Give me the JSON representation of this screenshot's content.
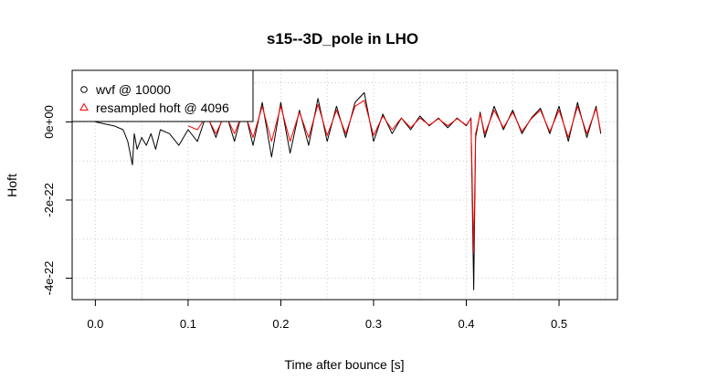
{
  "chart_data": {
    "type": "line",
    "title": "s15--3D_pole in LHO",
    "xlabel": "Time after bounce [s]",
    "ylabel": "Hoft",
    "xlim": [
      -0.025,
      0.563
    ],
    "ylim": [
      -4.55e-22,
      1.32e-22
    ],
    "x_ticks": [
      0.0,
      0.1,
      0.2,
      0.3,
      0.4,
      0.5
    ],
    "x_tick_labels": [
      "0.0",
      "0.1",
      "0.2",
      "0.3",
      "0.4",
      "0.5"
    ],
    "y_ticks": [
      -4e-22,
      -2e-22,
      0
    ],
    "y_tick_labels": [
      "-4e-22",
      "-2e-22",
      "0e+00"
    ],
    "grid": true,
    "legend_position": "top-left",
    "legend": [
      {
        "label": "wvf @ 10000",
        "marker": "circle",
        "color": "#000000"
      },
      {
        "label": "resampled hoft @ 4096",
        "marker": "triangle",
        "color": "#ff0000"
      }
    ],
    "series": [
      {
        "name": "wvf @ 10000",
        "color": "#000000",
        "x": [
          0.0,
          0.01,
          0.02,
          0.03,
          0.035,
          0.04,
          0.042,
          0.045,
          0.05,
          0.055,
          0.06,
          0.065,
          0.07,
          0.08,
          0.09,
          0.1,
          0.11,
          0.12,
          0.13,
          0.14,
          0.15,
          0.16,
          0.17,
          0.18,
          0.19,
          0.2,
          0.21,
          0.22,
          0.23,
          0.24,
          0.25,
          0.26,
          0.27,
          0.28,
          0.29,
          0.3,
          0.31,
          0.32,
          0.33,
          0.34,
          0.35,
          0.36,
          0.37,
          0.38,
          0.39,
          0.4,
          0.405,
          0.408,
          0.41,
          0.415,
          0.42,
          0.43,
          0.44,
          0.45,
          0.46,
          0.47,
          0.48,
          0.49,
          0.5,
          0.51,
          0.52,
          0.53,
          0.54,
          0.545
        ],
        "y": [
          0,
          -5e-24,
          -1e-23,
          -2e-23,
          -5e-23,
          -1.1e-22,
          -3e-23,
          -7e-23,
          -4e-23,
          -6e-23,
          -3e-23,
          -7e-23,
          -2e-23,
          -3e-23,
          -6e-23,
          -2e-23,
          -5e-23,
          2e-23,
          -4e-23,
          3e-23,
          -5e-23,
          4e-23,
          -6e-23,
          5e-23,
          -9e-23,
          5e-23,
          -8e-23,
          3e-23,
          -6e-23,
          6e-23,
          -5e-23,
          4e-23,
          -4e-23,
          5e-23,
          7.5e-23,
          -5e-23,
          2e-23,
          -3e-23,
          1e-23,
          -2e-23,
          1.5e-23,
          -1e-23,
          1e-23,
          -1.5e-23,
          1e-23,
          -1e-23,
          1e-23,
          -4.3e-22,
          -4e-23,
          2.5e-23,
          -4e-23,
          4e-23,
          -2e-23,
          3e-23,
          -3e-23,
          1e-23,
          3.5e-23,
          -3e-23,
          4e-23,
          -5e-23,
          5e-23,
          -4e-23,
          4e-23,
          -3e-23
        ]
      },
      {
        "name": "resampled hoft @ 4096",
        "color": "#ff0000",
        "x": [
          0.1,
          0.11,
          0.12,
          0.13,
          0.14,
          0.15,
          0.16,
          0.17,
          0.18,
          0.19,
          0.2,
          0.21,
          0.22,
          0.23,
          0.24,
          0.25,
          0.26,
          0.27,
          0.28,
          0.29,
          0.3,
          0.31,
          0.32,
          0.33,
          0.34,
          0.35,
          0.36,
          0.37,
          0.38,
          0.39,
          0.4,
          0.405,
          0.408,
          0.41,
          0.415,
          0.42,
          0.43,
          0.44,
          0.45,
          0.46,
          0.47,
          0.48,
          0.49,
          0.5,
          0.51,
          0.52,
          0.53,
          0.54,
          0.545
        ],
        "y": [
          -1e-23,
          -2e-23,
          1.5e-23,
          -3e-23,
          2e-23,
          -3e-23,
          3e-23,
          -4e-23,
          4e-23,
          -5e-23,
          4e-23,
          -5e-23,
          2.5e-23,
          -4e-23,
          4.5e-23,
          -3.5e-23,
          3e-23,
          -3e-23,
          4e-23,
          5.5e-23,
          -3.5e-23,
          1.5e-23,
          -2e-23,
          1e-23,
          -1.5e-23,
          1e-23,
          -8e-24,
          8e-24,
          -1e-23,
          8e-24,
          -8e-24,
          8e-24,
          -3.35e-22,
          -3e-23,
          2e-23,
          -3e-23,
          3e-23,
          -1.5e-23,
          2.5e-23,
          -2.5e-23,
          8e-24,
          3e-23,
          -2.5e-23,
          3e-23,
          -4e-23,
          4e-23,
          -3e-23,
          3.5e-23,
          -2.5e-23
        ]
      }
    ]
  }
}
